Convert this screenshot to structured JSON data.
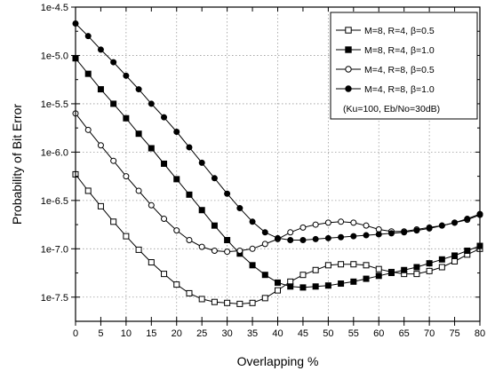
{
  "chart_data": {
    "type": "line",
    "xlabel": "Overlapping %",
    "ylabel": "Probability of Bit Error",
    "xlim": [
      0,
      80
    ],
    "ylim": [
      -7.75,
      -4.5
    ],
    "x_ticks": [
      0,
      5,
      10,
      15,
      20,
      25,
      30,
      35,
      40,
      45,
      50,
      55,
      60,
      65,
      70,
      75,
      80
    ],
    "x_tick_labels": [
      "0",
      "5",
      "10",
      "15",
      "20",
      "25",
      "30",
      "35",
      "40",
      "45",
      "50",
      "55",
      "60",
      "65",
      "70",
      "75",
      "80"
    ],
    "y_ticks": [
      -7.5,
      -7.0,
      -6.5,
      -6.0,
      -5.5,
      -5.0,
      -4.5
    ],
    "y_tick_labels": [
      "1e-7.5",
      "1e-7.0",
      "1e-6.5",
      "1e-6.0",
      "1e-5.5",
      "1e-5.0",
      "1e-4.5"
    ],
    "grid": true,
    "legend_position": "top-right",
    "legend_note": "(Ku=100, Eb/No=30dB)",
    "x": [
      0,
      2.5,
      5,
      7.5,
      10,
      12.5,
      15,
      17.5,
      20,
      22.5,
      25,
      27.5,
      30,
      32.5,
      35,
      37.5,
      40,
      42.5,
      45,
      47.5,
      50,
      52.5,
      55,
      57.5,
      60,
      62.5,
      65,
      67.5,
      70,
      72.5,
      75,
      77.5,
      80
    ],
    "series": [
      {
        "name": "M=8, R=4, β=0.5",
        "marker": "square-open",
        "values": [
          -6.23,
          -6.4,
          -6.56,
          -6.72,
          -6.87,
          -7.01,
          -7.14,
          -7.26,
          -7.37,
          -7.46,
          -7.52,
          -7.55,
          -7.56,
          -7.57,
          -7.56,
          -7.51,
          -7.43,
          -7.34,
          -7.27,
          -7.22,
          -7.17,
          -7.16,
          -7.16,
          -7.17,
          -7.21,
          -7.24,
          -7.26,
          -7.26,
          -7.23,
          -7.19,
          -7.13,
          -7.06,
          -7.0
        ]
      },
      {
        "name": "M=8, R=4, β=1.0",
        "marker": "square-filled",
        "values": [
          -5.03,
          -5.19,
          -5.35,
          -5.5,
          -5.65,
          -5.81,
          -5.96,
          -6.12,
          -6.28,
          -6.44,
          -6.6,
          -6.76,
          -6.91,
          -7.05,
          -7.17,
          -7.27,
          -7.35,
          -7.39,
          -7.4,
          -7.39,
          -7.38,
          -7.36,
          -7.34,
          -7.31,
          -7.28,
          -7.25,
          -7.22,
          -7.19,
          -7.15,
          -7.11,
          -7.07,
          -7.02,
          -6.97
        ]
      },
      {
        "name": "M=4, R=8, β=0.5",
        "marker": "circle-open",
        "values": [
          -5.6,
          -5.77,
          -5.93,
          -6.09,
          -6.25,
          -6.4,
          -6.55,
          -6.69,
          -6.81,
          -6.91,
          -6.98,
          -7.02,
          -7.03,
          -7.02,
          -7.0,
          -6.95,
          -6.9,
          -6.83,
          -6.78,
          -6.75,
          -6.73,
          -6.72,
          -6.73,
          -6.76,
          -6.8,
          -6.82,
          -6.82,
          -6.8,
          -6.78,
          -6.76,
          -6.73,
          -6.7,
          -6.65
        ]
      },
      {
        "name": "M=4, R=8, β=1.0",
        "marker": "circle-filled",
        "values": [
          -4.67,
          -4.8,
          -4.94,
          -5.07,
          -5.21,
          -5.35,
          -5.5,
          -5.64,
          -5.79,
          -5.95,
          -6.11,
          -6.27,
          -6.43,
          -6.58,
          -6.72,
          -6.83,
          -6.89,
          -6.91,
          -6.91,
          -6.9,
          -6.89,
          -6.88,
          -6.87,
          -6.86,
          -6.85,
          -6.84,
          -6.83,
          -6.81,
          -6.79,
          -6.76,
          -6.73,
          -6.69,
          -6.64
        ]
      }
    ]
  }
}
